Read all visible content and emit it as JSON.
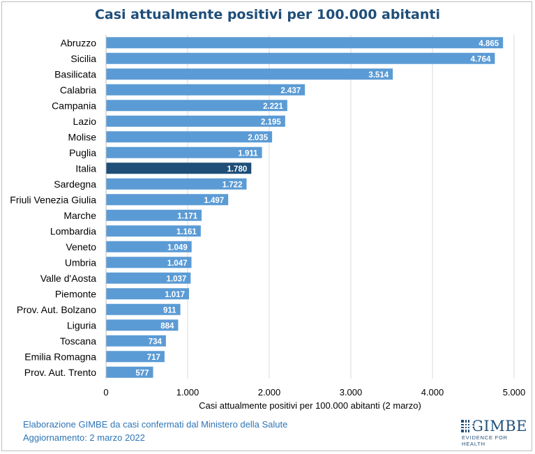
{
  "chart_data": {
    "type": "bar",
    "orientation": "horizontal",
    "title": "Casi attualmente positivi per 100.000 abitanti",
    "xlabel": "Casi attualmente positivi per 100.000 abitanti (2 marzo)",
    "ylabel": "",
    "xlim": [
      0,
      5000
    ],
    "ticks": [
      0,
      1000,
      2000,
      3000,
      4000,
      5000
    ],
    "tick_labels": [
      "0",
      "1.000",
      "2.000",
      "3.000",
      "4.000",
      "5.000"
    ],
    "grid": true,
    "categories": [
      "Abruzzo",
      "Sicilia",
      "Basilicata",
      "Calabria",
      "Campania",
      "Lazio",
      "Molise",
      "Puglia",
      "Italia",
      "Sardegna",
      "Friuli Venezia Giulia",
      "Marche",
      "Lombardia",
      "Veneto",
      "Umbria",
      "Valle d'Aosta",
      "Piemonte",
      "Prov. Aut. Bolzano",
      "Liguria",
      "Toscana",
      "Emilia Romagna",
      "Prov. Aut. Trento"
    ],
    "values": [
      4865,
      4764,
      3514,
      2437,
      2221,
      2195,
      2035,
      1911,
      1780,
      1722,
      1497,
      1171,
      1161,
      1049,
      1047,
      1037,
      1017,
      911,
      884,
      734,
      717,
      577
    ],
    "value_labels": [
      "4.865",
      "4.764",
      "3.514",
      "2.437",
      "2.221",
      "2.195",
      "2.035",
      "1.911",
      "1.780",
      "1.722",
      "1.497",
      "1.171",
      "1.161",
      "1.049",
      "1.047",
      "1.037",
      "1.017",
      "911",
      "884",
      "734",
      "717",
      "577"
    ],
    "highlight": "Italia",
    "colors": {
      "bar": "#5b9bd5",
      "highlight": "#1f4e79",
      "title": "#1f4e79",
      "footer": "#2e75b6",
      "grid": "#d9d9d9"
    }
  },
  "footer": {
    "line1": "Elaborazione GIMBE da casi confermati dal Ministero della Salute",
    "line2": "Aggiornamento: 2 marzo 2022"
  },
  "logo": {
    "name": "GIMBE",
    "tagline": "EVIDENCE FOR HEALTH"
  }
}
